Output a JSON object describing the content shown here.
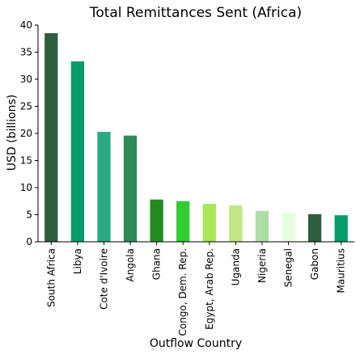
{
  "chart_data": {
    "type": "bar",
    "title": "Total Remittances Sent (Africa)",
    "xlabel": "Outflow Country",
    "ylabel": "USD (billions)",
    "ylim": [
      0,
      40
    ],
    "yticks": [
      0,
      5,
      10,
      15,
      20,
      25,
      30,
      35,
      40
    ],
    "grid": false,
    "categories": [
      "South Africa",
      "Libya",
      "Cote d'Ivoire",
      "Angola",
      "Ghana",
      "Congo, Dem. Rep.",
      "Egypt, Arab Rep.",
      "Uganda",
      "Nigeria",
      "Senegal",
      "Gabon",
      "Mauritius"
    ],
    "values": [
      38.5,
      33.3,
      20.3,
      19.6,
      7.8,
      7.5,
      7.0,
      6.7,
      5.7,
      5.4,
      5.1,
      4.9
    ],
    "colors": [
      "#2e5e3e",
      "#089c6c",
      "#2bab84",
      "#2e8b57",
      "#228b22",
      "#32cd32",
      "#a6e85a",
      "#c2e684",
      "#acdfa6",
      "#e6ffdf",
      "#2e5e3e",
      "#089c6c"
    ]
  }
}
